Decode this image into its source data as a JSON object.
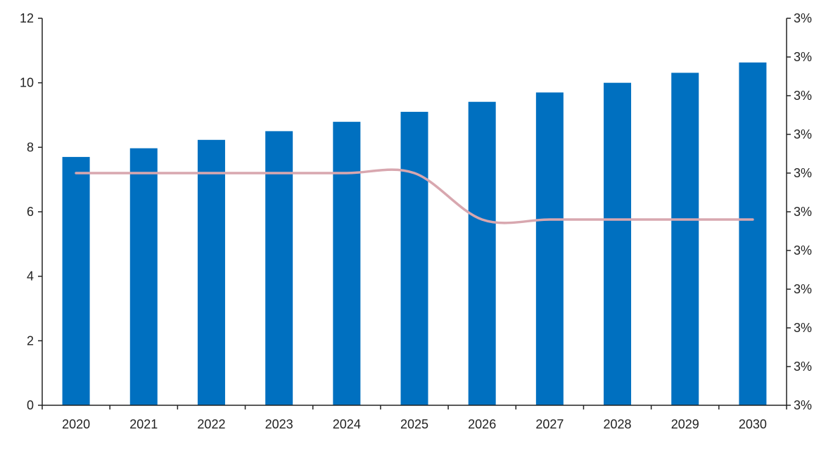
{
  "chart_data": {
    "type": "bar",
    "categories": [
      "2020",
      "2021",
      "2022",
      "2023",
      "2024",
      "2025",
      "2026",
      "2027",
      "2028",
      "2029",
      "2030"
    ],
    "series": [
      {
        "type": "bar",
        "axis": "left",
        "color": "#0070c0",
        "values": [
          7.7,
          7.97,
          8.23,
          8.5,
          8.79,
          9.1,
          9.41,
          9.7,
          10.0,
          10.31,
          10.63
        ]
      },
      {
        "type": "line",
        "axis": "right",
        "color": "#d8a7af",
        "values": [
          3.1,
          3.1,
          3.1,
          3.1,
          3.1,
          3.1,
          2.98,
          2.98,
          2.98,
          2.98,
          2.98
        ]
      }
    ],
    "ylim": [
      0,
      12
    ],
    "yticks": [
      "0",
      "2",
      "4",
      "6",
      "8",
      "10",
      "12"
    ],
    "y2ticks": [
      "3%",
      "3%",
      "3%",
      "3%",
      "3%",
      "3%",
      "3%",
      "3%",
      "3%",
      "3%",
      "3%"
    ],
    "grid": false,
    "legend": "none"
  }
}
